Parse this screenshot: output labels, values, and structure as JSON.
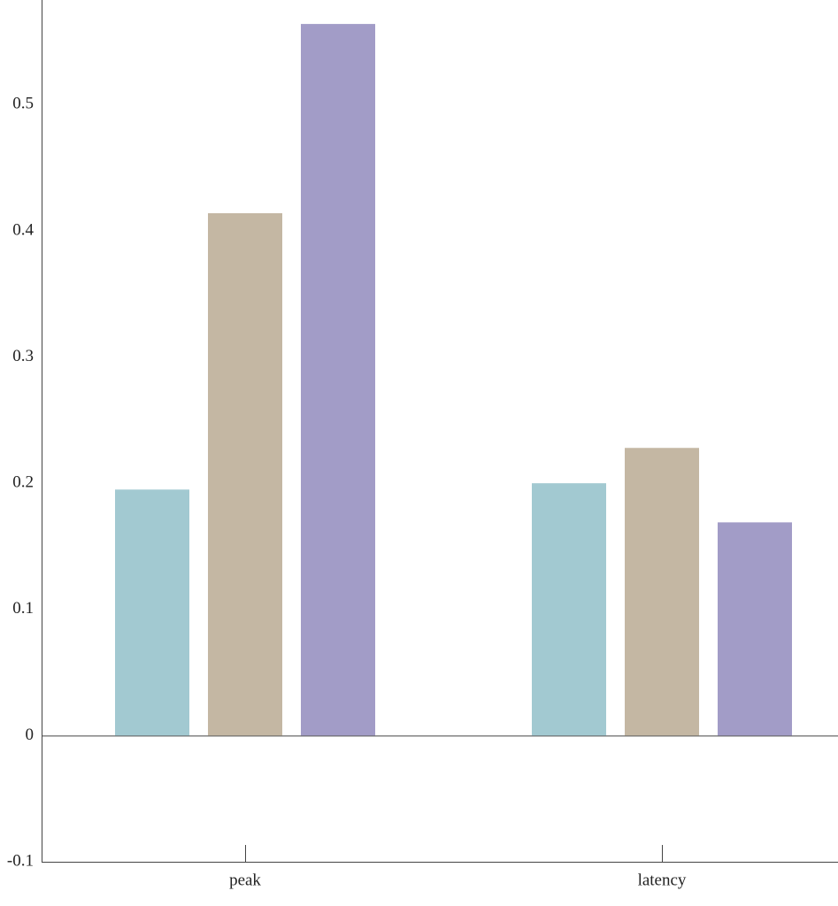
{
  "chart_data": {
    "type": "bar",
    "categories": [
      "peak",
      "latency"
    ],
    "series": [
      {
        "color": "#a2c9d1",
        "values": [
          0.195,
          0.2
        ]
      },
      {
        "color": "#c4b7a3",
        "values": [
          0.414,
          0.228
        ]
      },
      {
        "color": "#a29cc7",
        "values": [
          0.564,
          0.169
        ]
      }
    ],
    "ylim": [
      -0.1,
      0.583
    ],
    "yticks": [
      -0.1,
      0,
      0.1,
      0.2,
      0.3,
      0.4,
      0.5
    ]
  }
}
